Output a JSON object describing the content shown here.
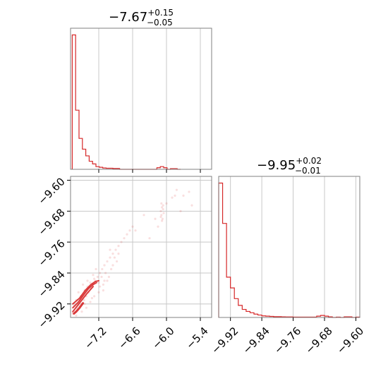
{
  "chart_data": {
    "type": "corner",
    "color": "#d62728",
    "panels": [
      {
        "id": "hist-p1",
        "type": "histogram",
        "title": {
          "base": "−7.67",
          "sup": "+0.15",
          "sub": "−0.05"
        },
        "xlim": [
          -7.7,
          -5.2
        ],
        "xticks": [
          -7.2,
          -6.6,
          -6.0,
          -5.4
        ],
        "x_tick_labels_shown": false,
        "grid": true,
        "bin_edges": [
          -7.67,
          -7.61,
          -7.55,
          -7.49,
          -7.43,
          -7.37,
          -7.31,
          -7.25,
          -7.19,
          -7.13,
          -7.07,
          -7.01,
          -6.95,
          -6.89,
          -6.83,
          -6.77,
          -6.71,
          -6.65,
          -6.59,
          -6.53,
          -6.47,
          -6.41,
          -6.35,
          -6.29,
          -6.23,
          -6.17,
          -6.11,
          -6.05,
          -5.99,
          -5.93,
          -5.87,
          -5.81,
          -5.75
        ],
        "counts": [
          1.0,
          0.44,
          0.23,
          0.15,
          0.1,
          0.06,
          0.04,
          0.02,
          0.015,
          0.01,
          0.008,
          0.008,
          0.006,
          0.006,
          0.0,
          0.0,
          0.0,
          0.0,
          0.0,
          0.0,
          0.0,
          0.0,
          0.0,
          0.0,
          0.0,
          0.012,
          0.02,
          0.012,
          0.0,
          0.005,
          0.005,
          0.0
        ]
      },
      {
        "id": "hist-p2",
        "type": "histogram",
        "title": {
          "base": "−9.95",
          "sup": "+0.02",
          "sub": "−0.01"
        },
        "xlim": [
          -9.95,
          -9.59
        ],
        "xticks": [
          -9.92,
          -9.84,
          -9.76,
          -9.68,
          -9.6
        ],
        "x_tick_labels": [
          "−9.92",
          "−9.84",
          "−9.76",
          "−9.68",
          "−9.60"
        ],
        "grid": true,
        "bin_edges": [
          -9.95,
          -9.94,
          -9.93,
          -9.92,
          -9.91,
          -9.9,
          -9.89,
          -9.88,
          -9.87,
          -9.86,
          -9.85,
          -9.84,
          -9.83,
          -9.82,
          -9.81,
          -9.8,
          -9.79,
          -9.78,
          -9.77,
          -9.76,
          -9.75,
          -9.74,
          -9.73,
          -9.72,
          -9.71,
          -9.7,
          -9.69,
          -9.68,
          -9.67,
          -9.66,
          -9.65,
          -9.64,
          -9.63,
          -9.62,
          -9.61,
          -9.6,
          -9.59
        ],
        "counts": [
          1.0,
          0.7,
          0.3,
          0.22,
          0.14,
          0.09,
          0.06,
          0.045,
          0.035,
          0.025,
          0.018,
          0.012,
          0.01,
          0.008,
          0.006,
          0.006,
          0.005,
          0.004,
          0.004,
          0.003,
          0.003,
          0.003,
          0.003,
          0.003,
          0.003,
          0.01,
          0.015,
          0.01,
          0.005,
          0.0,
          0.003,
          0.0,
          0.005,
          0.005,
          0.0,
          0.003
        ]
      },
      {
        "id": "scatter-p1-p2",
        "type": "2d-scatter-contour",
        "xlim": [
          -7.7,
          -5.2
        ],
        "ylim": [
          -9.955,
          -9.59
        ],
        "xticks": [
          -7.2,
          -6.6,
          -6.0,
          -5.4
        ],
        "x_tick_labels": [
          "−7.2",
          "−6.6",
          "−6.0",
          "−5.4"
        ],
        "yticks": [
          -9.6,
          -9.68,
          -9.76,
          -9.84,
          -9.92
        ],
        "y_tick_labels": [
          "−9.60",
          "−9.68",
          "−9.76",
          "−9.84",
          "−9.92"
        ],
        "grid": true,
        "point_alpha": 0.15,
        "points": [
          [
            -7.62,
            -9.94
          ],
          [
            -7.58,
            -9.93
          ],
          [
            -7.55,
            -9.925
          ],
          [
            -7.5,
            -9.92
          ],
          [
            -7.46,
            -9.91
          ],
          [
            -7.42,
            -9.9
          ],
          [
            -7.38,
            -9.89
          ],
          [
            -7.34,
            -9.88
          ],
          [
            -7.3,
            -9.87
          ],
          [
            -7.26,
            -9.86
          ],
          [
            -7.22,
            -9.85
          ],
          [
            -7.18,
            -9.84
          ],
          [
            -7.14,
            -9.83
          ],
          [
            -7.1,
            -9.82
          ],
          [
            -7.05,
            -9.81
          ],
          [
            -7.0,
            -9.8
          ],
          [
            -6.95,
            -9.79
          ],
          [
            -6.9,
            -9.78
          ],
          [
            -6.85,
            -9.77
          ],
          [
            -6.8,
            -9.76
          ],
          [
            -6.75,
            -9.75
          ],
          [
            -6.7,
            -9.74
          ],
          [
            -6.65,
            -9.73
          ],
          [
            -6.6,
            -9.72
          ],
          [
            -7.6,
            -9.91
          ],
          [
            -7.52,
            -9.9
          ],
          [
            -7.45,
            -9.885
          ],
          [
            -7.4,
            -9.875
          ],
          [
            -7.35,
            -9.865
          ],
          [
            -7.28,
            -9.855
          ],
          [
            -7.2,
            -9.865
          ],
          [
            -7.15,
            -9.85
          ],
          [
            -7.08,
            -9.84
          ],
          [
            -7.12,
            -9.87
          ],
          [
            -7.25,
            -9.83
          ],
          [
            -7.3,
            -9.845
          ],
          [
            -7.4,
            -9.86
          ],
          [
            -7.48,
            -9.87
          ],
          [
            -7.56,
            -9.89
          ],
          [
            -7.64,
            -9.925
          ],
          [
            -7.66,
            -9.945
          ],
          [
            -7.6,
            -9.95
          ],
          [
            -7.5,
            -9.94
          ],
          [
            -7.42,
            -9.93
          ],
          [
            -7.35,
            -9.915
          ],
          [
            -7.28,
            -9.9
          ],
          [
            -7.2,
            -9.89
          ],
          [
            -7.12,
            -9.885
          ],
          [
            -7.05,
            -9.86
          ],
          [
            -6.98,
            -9.83
          ],
          [
            -6.92,
            -9.8
          ],
          [
            -6.88,
            -9.81
          ],
          [
            -6.95,
            -9.82
          ],
          [
            -7.02,
            -9.85
          ],
          [
            -7.1,
            -9.86
          ],
          [
            -7.18,
            -9.875
          ],
          [
            -7.32,
            -9.905
          ],
          [
            -7.45,
            -9.92
          ],
          [
            -7.58,
            -9.935
          ],
          [
            -6.1,
            -9.68
          ],
          [
            -6.08,
            -9.67
          ],
          [
            -6.06,
            -9.675
          ],
          [
            -6.09,
            -9.69
          ],
          [
            -6.07,
            -9.7
          ],
          [
            -6.05,
            -9.685
          ],
          [
            -6.1,
            -9.695
          ],
          [
            -6.08,
            -9.705
          ],
          [
            -6.06,
            -9.665
          ],
          [
            -6.09,
            -9.66
          ],
          [
            -5.9,
            -9.645
          ],
          [
            -5.85,
            -9.64
          ],
          [
            -5.7,
            -9.64
          ],
          [
            -5.6,
            -9.63
          ],
          [
            -5.55,
            -9.665
          ],
          [
            -5.82,
            -9.625
          ],
          [
            -5.75,
            -9.68
          ],
          [
            -6.4,
            -9.69
          ],
          [
            -6.55,
            -9.73
          ],
          [
            -6.2,
            -9.7
          ],
          [
            -6.0,
            -9.66
          ],
          [
            -6.15,
            -9.72
          ],
          [
            -6.3,
            -9.75
          ],
          [
            -7.0,
            -9.78
          ],
          [
            -6.85,
            -9.79
          ]
        ],
        "contours": [
          [
            [
              -7.66,
              -9.94
            ],
            [
              -7.58,
              -9.925
            ],
            [
              -7.5,
              -9.91
            ],
            [
              -7.42,
              -9.895
            ],
            [
              -7.36,
              -9.885
            ],
            [
              -7.3,
              -9.875
            ]
          ],
          [
            [
              -7.66,
              -9.93
            ],
            [
              -7.56,
              -9.915
            ],
            [
              -7.46,
              -9.895
            ],
            [
              -7.38,
              -9.88
            ],
            [
              -7.3,
              -9.87
            ],
            [
              -7.24,
              -9.865
            ]
          ],
          [
            [
              -7.66,
              -9.92
            ],
            [
              -7.54,
              -9.905
            ],
            [
              -7.44,
              -9.885
            ],
            [
              -7.34,
              -9.87
            ],
            [
              -7.26,
              -9.862
            ],
            [
              -7.2,
              -9.86
            ]
          ],
          [
            [
              -7.64,
              -9.945
            ],
            [
              -7.6,
              -9.94
            ],
            [
              -7.54,
              -9.93
            ],
            [
              -7.48,
              -9.918
            ]
          ]
        ]
      }
    ]
  }
}
